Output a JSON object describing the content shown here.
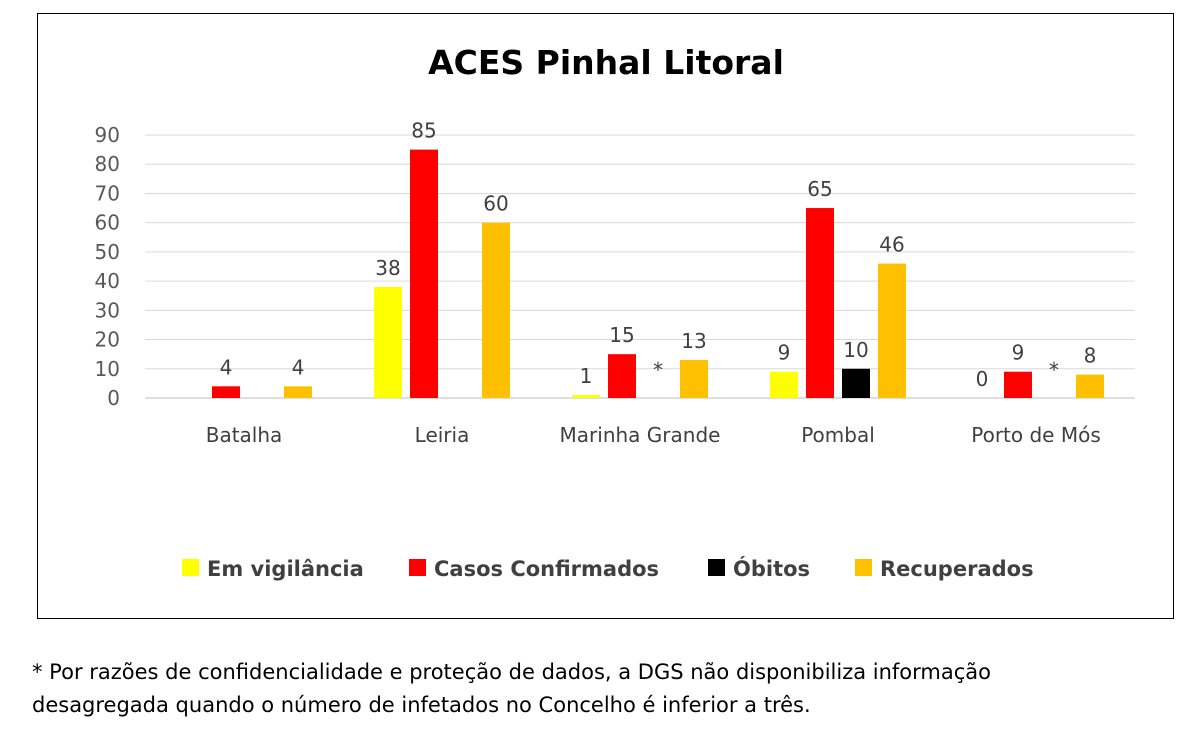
{
  "chart_data": {
    "type": "bar",
    "title": "ACES Pinhal Litoral",
    "categories": [
      "Batalha",
      "Leiria",
      "Marinha Grande",
      "Pombal",
      "Porto de Mós"
    ],
    "series": [
      {
        "name": "Em vigilância",
        "color": "#FFFF00",
        "values": [
          null,
          38,
          1,
          9,
          0
        ],
        "labels": [
          "",
          "38",
          "1",
          "9",
          "0"
        ]
      },
      {
        "name": "Casos Confirmados",
        "color": "#FF0000",
        "values": [
          4,
          85,
          15,
          65,
          9
        ],
        "labels": [
          "4",
          "85",
          "15",
          "65",
          "9"
        ]
      },
      {
        "name": "Óbitos",
        "color": "#000000",
        "values": [
          null,
          null,
          null,
          10,
          null
        ],
        "labels": [
          "",
          "",
          "*",
          "10",
          "*"
        ]
      },
      {
        "name": "Recuperados",
        "color": "#FFC000",
        "values": [
          4,
          60,
          13,
          46,
          8
        ],
        "labels": [
          "4",
          "60",
          "13",
          "46",
          "8"
        ]
      }
    ],
    "ylim": [
      0,
      90
    ],
    "yticks": [
      0,
      10,
      20,
      30,
      40,
      50,
      60,
      70,
      80,
      90
    ],
    "grid": true,
    "legend_position": "bottom",
    "xlabel": "",
    "ylabel": ""
  },
  "footnote": {
    "line1": "* Por razões de confidencialidade e proteção de dados, a DGS não disponibiliza informação",
    "line2": "desagregada quando o número de infetados no Concelho é inferior a três."
  }
}
